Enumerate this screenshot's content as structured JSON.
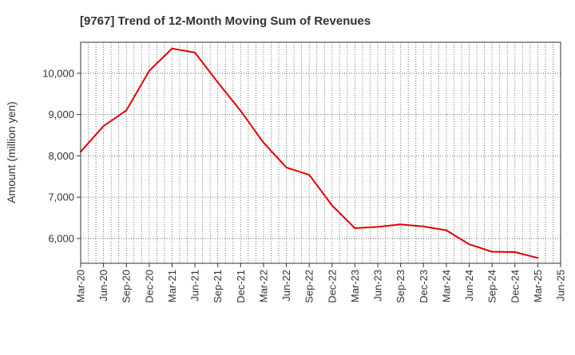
{
  "chart_data": {
    "type": "line",
    "title": "[9767]  Trend of 12-Month Moving Sum of Revenues",
    "xlabel": "",
    "ylabel": "Amount (million yen)",
    "ylim": [
      5400,
      10750
    ],
    "yticks": [
      6000,
      7000,
      8000,
      9000,
      10000
    ],
    "ytick_labels": [
      "6,000",
      "7,000",
      "8,000",
      "9,000",
      "10,000"
    ],
    "xtick_labels": [
      "Mar-20",
      "Jun-20",
      "Sep-20",
      "Dec-20",
      "Mar-21",
      "Jun-21",
      "Sep-21",
      "Dec-21",
      "Mar-22",
      "Jun-22",
      "Sep-22",
      "Dec-22",
      "Mar-23",
      "Jun-23",
      "Sep-23",
      "Dec-23",
      "Mar-24",
      "Jun-24",
      "Sep-24",
      "Dec-24",
      "Mar-25",
      "Jun-25"
    ],
    "grid": true,
    "legend": "none",
    "series": [
      {
        "color": "#e00000",
        "x": [
          "Mar-20",
          "Jun-20",
          "Sep-20",
          "Dec-20",
          "Mar-21",
          "Jun-21",
          "Sep-21",
          "Dec-21",
          "Mar-22",
          "Jun-22",
          "Sep-22",
          "Dec-22",
          "Mar-23",
          "Jun-23",
          "Sep-23",
          "Dec-23",
          "Mar-24",
          "Jun-24",
          "Sep-24",
          "Dec-24",
          "Mar-25"
        ],
        "values": [
          8100,
          8720,
          9100,
          10060,
          10600,
          10500,
          9780,
          9090,
          8320,
          7720,
          7540,
          6800,
          6250,
          6280,
          6340,
          6290,
          6200,
          5860,
          5680,
          5670,
          5530
        ]
      }
    ]
  }
}
